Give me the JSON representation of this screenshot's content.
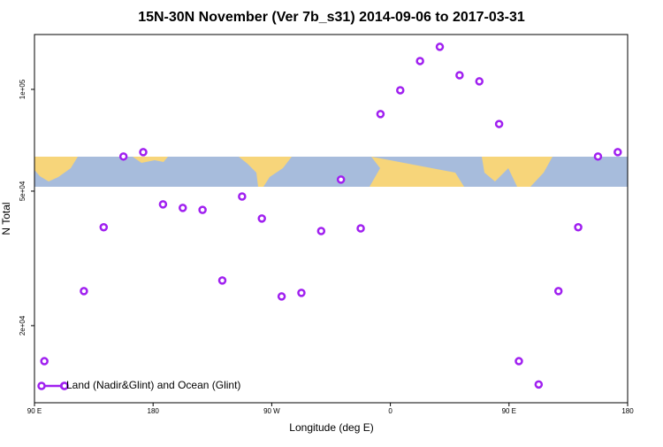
{
  "chart_data": {
    "type": "scatter",
    "title": "15N-30N November (Ver 7b_s31)   2014-09-06 to 2017-03-31",
    "x_label": "Longitude (deg E)",
    "y_label": "N Total",
    "x": [
      97.5,
      112.5,
      127.5,
      142.5,
      157.5,
      172.5,
      187.5,
      202.5,
      217.5,
      232.5,
      247.5,
      262.5,
      277.5,
      292.5,
      307.5,
      322.5,
      337.5,
      352.5,
      367.5,
      382.5,
      397.5,
      412.5,
      427.5,
      442.5,
      457.5,
      472.5,
      487.5,
      502.5,
      517.5,
      532.5
    ],
    "series": [
      {
        "name": "Land (Nadir&Glint) and Ocean (Glint)",
        "color": "#a020f0",
        "values": [
          15700,
          13270,
          25300,
          39100,
          63300,
          65200,
          45700,
          44600,
          44000,
          27200,
          48200,
          41500,
          24400,
          25000,
          38100,
          54100,
          38800,
          84500,
          99400,
          121300,
          133600,
          110100,
          105600,
          79000,
          15700,
          13400,
          25300,
          39100,
          63300,
          65200
        ]
      }
    ],
    "xlim": [
      90,
      540
    ],
    "xticks": [
      {
        "value": 90,
        "label": "90 E"
      },
      {
        "value": 180,
        "label": "180"
      },
      {
        "value": 270,
        "label": "90 W"
      },
      {
        "value": 360,
        "label": "0"
      },
      {
        "value": 450,
        "label": "90 E"
      },
      {
        "value": 540,
        "label": "180"
      }
    ],
    "ylim": [
      11830,
      145300
    ],
    "log_y": true,
    "yticks": [
      {
        "value": 20000,
        "label": "2e+04"
      },
      {
        "value": 50000,
        "label": "5e+04"
      },
      {
        "value": 100000,
        "label": "1e+05"
      }
    ],
    "legend": "bottom-left"
  }
}
